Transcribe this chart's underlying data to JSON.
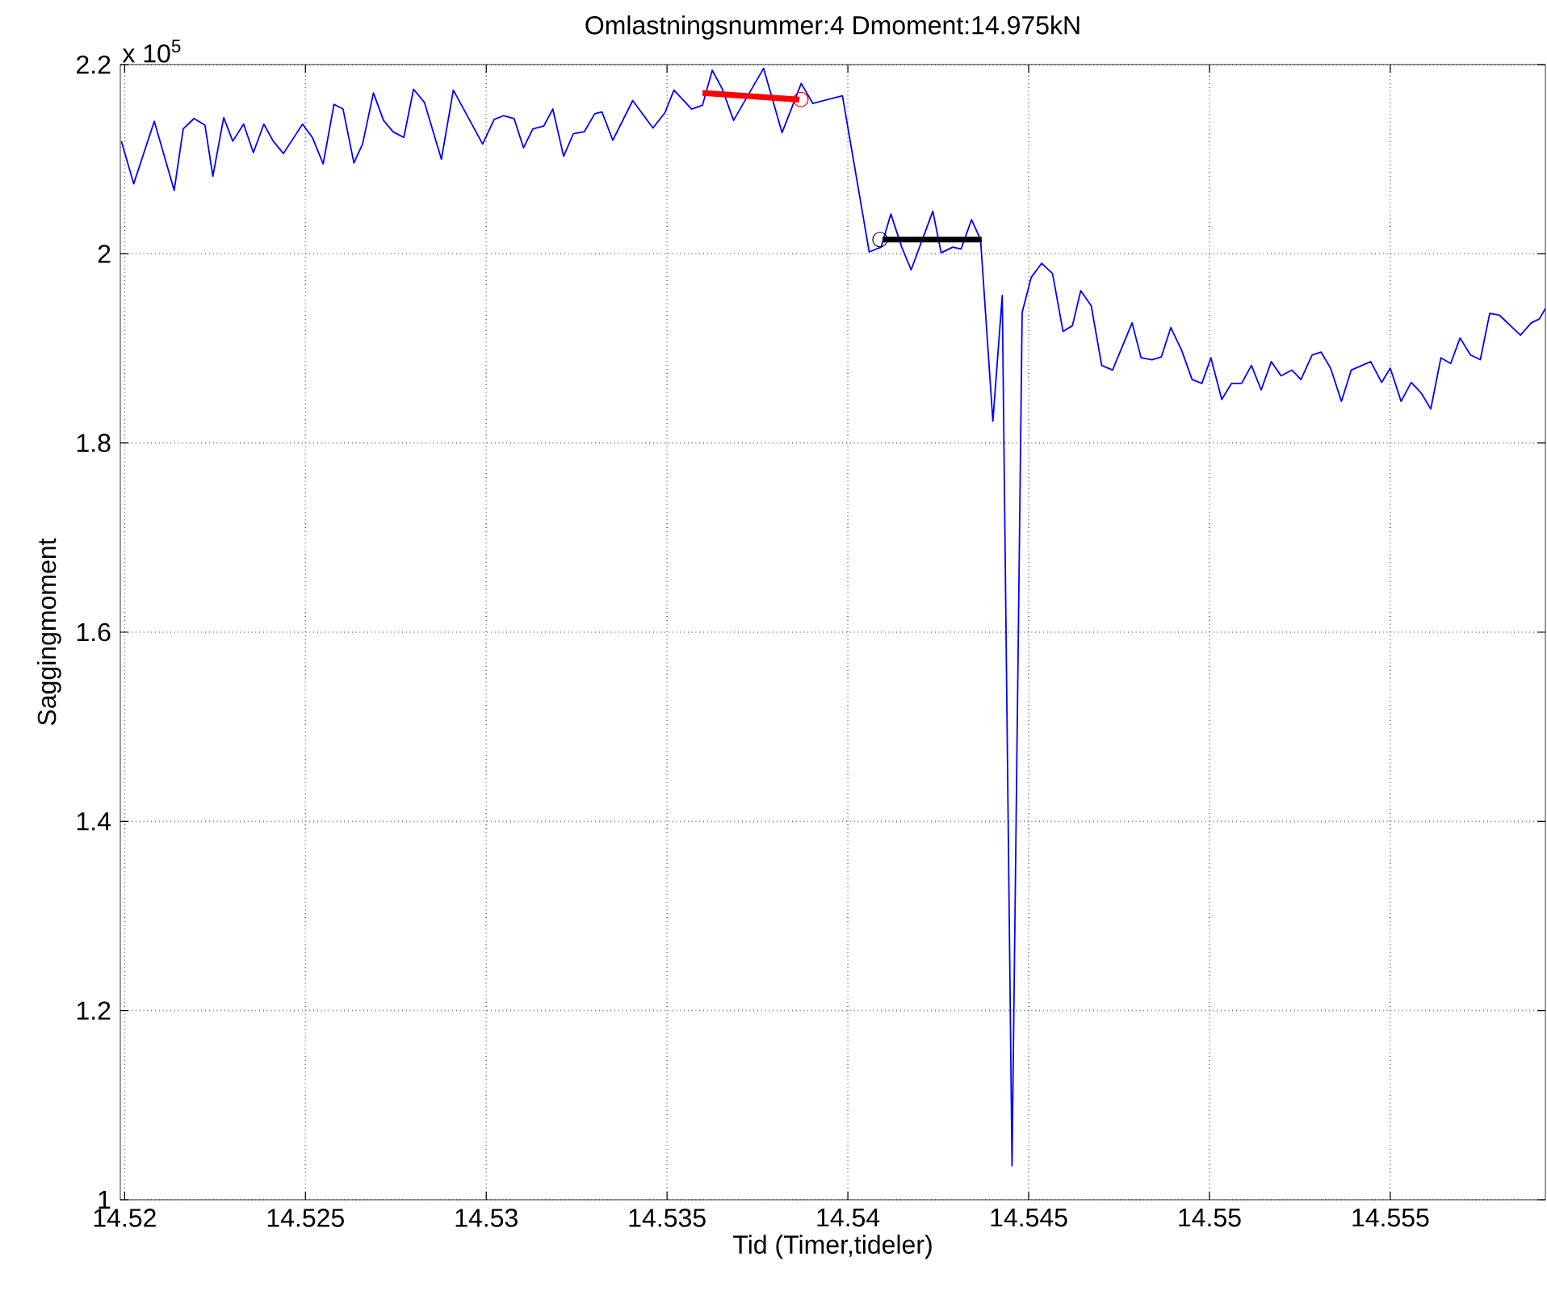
{
  "chart_data": {
    "type": "line",
    "title": "Omlastningsnummer:4  Dmoment:14.975kN",
    "xlabel": "Tid (Timer,tideler)",
    "ylabel": "Saggingmoment",
    "annotations": [
      "x 10$^{5}$"
    ],
    "xlim": [
      14.51988,
      14.55929
    ],
    "ylim": [
      1,
      2.2
    ],
    "xticks": [
      14.52,
      14.525,
      14.53,
      14.535,
      14.54,
      14.545,
      14.55,
      14.555
    ],
    "yticks": [
      1,
      1.2,
      1.4,
      1.6,
      1.8,
      2,
      2.2
    ],
    "grid": true,
    "series": [
      {
        "color": "#0000ff",
        "x": [
          14.51991,
          14.52025,
          14.52082,
          14.52137,
          14.52162,
          14.52192,
          14.52222,
          14.52244,
          14.52274,
          14.52299,
          14.52329,
          14.52356,
          14.52385,
          14.52411,
          14.52439,
          14.52492,
          14.52519,
          14.52549,
          14.52579,
          14.52604,
          14.52634,
          14.52658,
          14.52688,
          14.52716,
          14.52742,
          14.52772,
          14.52799,
          14.52829,
          14.52876,
          14.52909,
          14.5299,
          14.53022,
          14.53048,
          14.53077,
          14.53103,
          14.53129,
          14.53159,
          14.53184,
          14.53214,
          14.53241,
          14.53271,
          14.533,
          14.5332,
          14.5335,
          14.53405,
          14.53461,
          14.53494,
          14.53519,
          14.53568,
          14.53598,
          14.53625,
          14.53653,
          14.53684,
          14.53717,
          14.53767,
          14.53818,
          14.53871,
          14.53903,
          14.53985,
          14.54059,
          14.54092,
          14.54119,
          14.54149,
          14.54175,
          14.54235,
          14.54258,
          14.5429,
          14.54313,
          14.54342,
          14.54367,
          14.54401,
          14.54427,
          14.54454,
          14.54482,
          14.54507,
          14.54536,
          14.54566,
          14.54595,
          14.54621,
          14.54644,
          14.54673,
          14.54702,
          14.54732,
          14.54786,
          14.54811,
          14.54841,
          14.54867,
          14.54893,
          14.54923,
          14.54952,
          14.54979,
          14.55004,
          14.55034,
          14.55061,
          14.55089,
          14.55116,
          14.55143,
          14.55171,
          14.55198,
          14.55228,
          14.55253,
          14.55284,
          14.55309,
          14.55335,
          14.55365,
          14.55392,
          14.55446,
          14.55476,
          14.555,
          14.5553,
          14.55558,
          14.55585,
          14.55612,
          14.5564,
          14.55667,
          14.55693,
          14.55722,
          14.55749,
          14.55775,
          14.55802,
          14.5586,
          14.5589,
          14.55912,
          14.55929
        ],
        "values": [
          2.119,
          2.074,
          2.14,
          2.067,
          2.132,
          2.143,
          2.136,
          2.082,
          2.144,
          2.119,
          2.137,
          2.107,
          2.137,
          2.119,
          2.106,
          2.137,
          2.123,
          2.095,
          2.158,
          2.153,
          2.096,
          2.116,
          2.17,
          2.141,
          2.129,
          2.123,
          2.174,
          2.16,
          2.1,
          2.173,
          2.116,
          2.142,
          2.146,
          2.143,
          2.112,
          2.132,
          2.135,
          2.153,
          2.103,
          2.127,
          2.129,
          2.148,
          2.15,
          2.12,
          2.162,
          2.133,
          2.149,
          2.173,
          2.153,
          2.157,
          2.194,
          2.174,
          2.141,
          2.163,
          2.196,
          2.128,
          2.18,
          2.159,
          2.167,
          2.002,
          2.007,
          2.042,
          2.007,
          1.983,
          2.045,
          2.001,
          2.007,
          2.005,
          2.036,
          2.015,
          1.823,
          1.956,
          1.036,
          1.938,
          1.975,
          1.99,
          1.979,
          1.918,
          1.924,
          1.961,
          1.945,
          1.882,
          1.877,
          1.927,
          1.89,
          1.888,
          1.891,
          1.922,
          1.898,
          1.867,
          1.863,
          1.89,
          1.846,
          1.863,
          1.863,
          1.882,
          1.856,
          1.886,
          1.871,
          1.877,
          1.867,
          1.893,
          1.896,
          1.879,
          1.844,
          1.877,
          1.886,
          1.864,
          1.879,
          1.844,
          1.864,
          1.853,
          1.836,
          1.89,
          1.884,
          1.911,
          1.893,
          1.888,
          1.937,
          1.935,
          1.914,
          1.927,
          1.931,
          1.942
        ]
      },
      {
        "color": "#ff0000",
        "x": [
          14.53598,
          14.53866
        ],
        "values": [
          2.17,
          2.163
        ]
      },
      {
        "color": "#000000",
        "x": [
          14.54096,
          14.5437
        ],
        "values": [
          2.015,
          2.015
        ]
      },
      {
        "type": "scatter",
        "marker": "circle",
        "color": "#ff0000",
        "x": [
          14.5387
        ],
        "values": [
          2.163
        ]
      },
      {
        "type": "scatter",
        "marker": "circle",
        "color": "#000000",
        "x": [
          14.54089
        ],
        "values": [
          2.015
        ]
      }
    ]
  }
}
